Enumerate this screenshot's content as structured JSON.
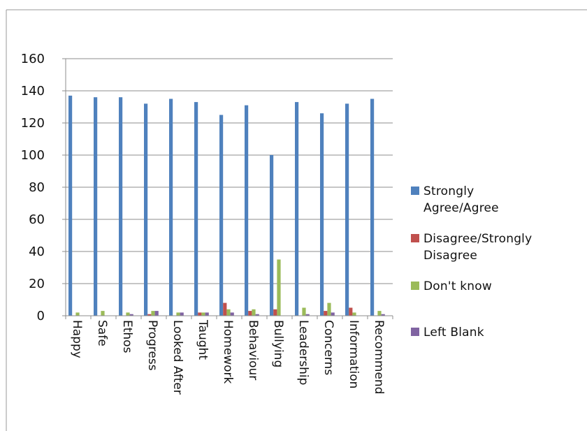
{
  "chart_data": {
    "type": "bar",
    "title": "",
    "xlabel": "",
    "ylabel": "",
    "ylim": [
      0,
      160
    ],
    "yticks": [
      0,
      20,
      40,
      60,
      80,
      100,
      120,
      140,
      160
    ],
    "grid": true,
    "legend_position": "right",
    "categories": [
      "Happy",
      "Safe",
      "Ethos",
      "Progress",
      "Looked After",
      "Taught",
      "Homework",
      "Behaviour",
      "Bullying",
      "Leadership",
      "Concerns",
      "Information",
      "Recommend"
    ],
    "series": [
      {
        "name": "Strongly Agree/Agree",
        "color": "#4F81BD",
        "values": [
          137,
          136,
          136,
          132,
          135,
          133,
          125,
          131,
          100,
          133,
          126,
          132,
          135
        ]
      },
      {
        "name": "Disagree/Strongly Disagree",
        "color": "#C0504D",
        "values": [
          0,
          0,
          0,
          1,
          0,
          2,
          8,
          3,
          4,
          0,
          3,
          5,
          0
        ]
      },
      {
        "name": "Don't know",
        "color": "#9BBB59",
        "values": [
          2,
          3,
          2,
          3,
          2,
          2,
          4,
          4,
          35,
          5,
          8,
          2,
          3
        ]
      },
      {
        "name": "Left Blank",
        "color": "#8064A2",
        "values": [
          0,
          0,
          1,
          3,
          2,
          2,
          2,
          1,
          0,
          1,
          2,
          0,
          1
        ]
      }
    ]
  },
  "legend": {
    "items": [
      {
        "label": "Strongly Agree/Agree",
        "color": "#4F81BD"
      },
      {
        "label": "Disagree/Strongly Disagree",
        "color": "#C0504D"
      },
      {
        "label": "Don't know",
        "color": "#9BBB59"
      },
      {
        "label": "Left Blank",
        "color": "#8064A2"
      }
    ]
  }
}
